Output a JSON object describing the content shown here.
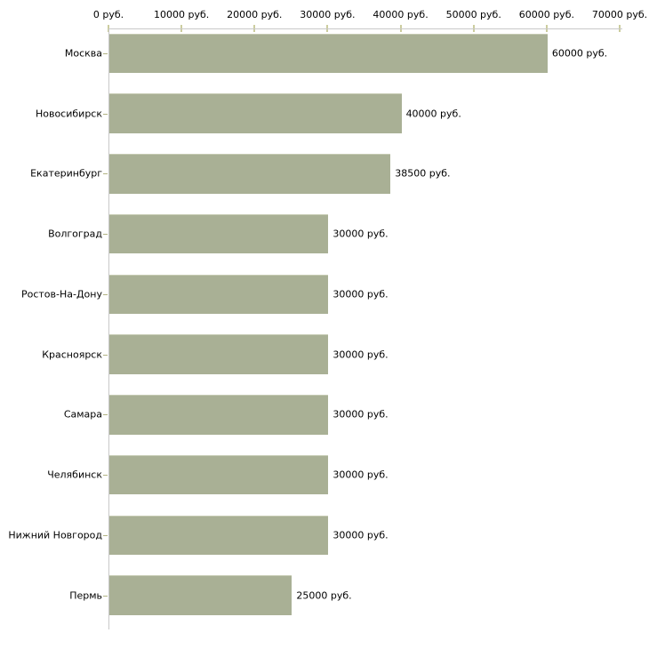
{
  "chart_data": {
    "type": "bar",
    "orientation": "horizontal",
    "title": "",
    "xlabel": "",
    "ylabel": "",
    "unit": "руб.",
    "xlim": [
      0,
      70000
    ],
    "grid": false,
    "legend": null,
    "categories": [
      "Москва",
      "Новосибирск",
      "Екатеринбург",
      "Волгоград",
      "Ростов-На-Дону",
      "Красноярск",
      "Самара",
      "Челябинск",
      "Нижний Новгород",
      "Пермь"
    ],
    "values": [
      60000,
      40000,
      38500,
      30000,
      30000,
      30000,
      30000,
      30000,
      30000,
      25000
    ],
    "value_labels": [
      "60000 руб.",
      "40000 руб.",
      "38500 руб.",
      "30000 руб.",
      "30000 руб.",
      "30000 руб.",
      "30000 руб.",
      "30000 руб.",
      "30000 руб.",
      "25000 руб."
    ],
    "x_ticks": [
      0,
      10000,
      20000,
      30000,
      40000,
      50000,
      60000,
      70000
    ],
    "x_tick_labels": [
      "0 руб.",
      "10000 руб.",
      "20000 руб.",
      "30000 руб.",
      "40000 руб.",
      "50000 руб.",
      "60000 руб.",
      "70000 руб."
    ],
    "colors": {
      "bar_fill": "#a9b095",
      "bar_top_highlight": "#c6cbb3",
      "axis_line": "#c8c8c8",
      "x_tick_mark": "#cccd9f",
      "category_tick_mark": "#b2b383",
      "text": "#000000",
      "background": "#ffffff"
    }
  }
}
